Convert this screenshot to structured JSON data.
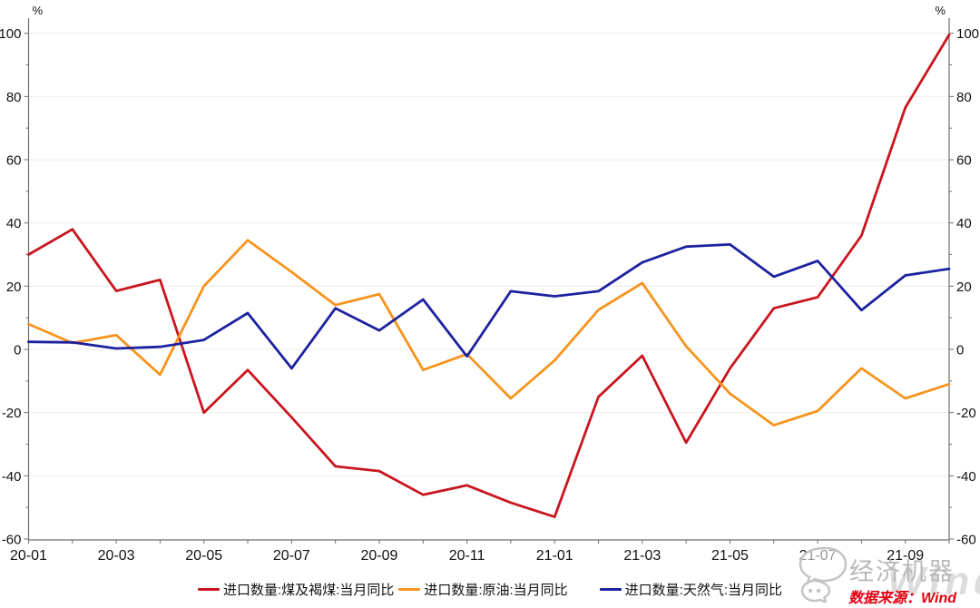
{
  "chart_data": {
    "type": "line",
    "title": "",
    "unit_label": "%",
    "x": [
      "20-01",
      "20-02",
      "20-03",
      "20-04",
      "20-05",
      "20-06",
      "20-07",
      "20-08",
      "20-09",
      "20-10",
      "20-11",
      "20-12",
      "21-01",
      "21-02",
      "21-03",
      "21-04",
      "21-05",
      "21-06",
      "21-07",
      "21-08",
      "21-09",
      "21-10"
    ],
    "x_labeled_every": 2,
    "ylim": [
      -60,
      100
    ],
    "ytick_step": 20,
    "ytick_minor_step": 10,
    "grid": "horizontal",
    "legend_position": "bottom",
    "axis_color": "#6f6f6f",
    "grid_color": "#ededed",
    "label_color": "#111111",
    "series": [
      {
        "name": "进口数量:煤及褐煤:当月同比",
        "color": "#c9151e",
        "values": [
          30,
          38,
          18.5,
          22,
          -20,
          -6.5,
          -21.5,
          -37,
          -38.5,
          -46,
          -43,
          -48.5,
          -53,
          -15,
          -2,
          -29.5,
          -6,
          13,
          16.5,
          36,
          76.5,
          99.5
        ]
      },
      {
        "name": "进口数量:原油:当月同比",
        "color": "#f7941d",
        "values": [
          8,
          2,
          4.5,
          -8,
          20,
          34.5,
          24.5,
          14,
          17.5,
          -6.5,
          -1.5,
          -15.5,
          -3.5,
          12.5,
          21,
          1,
          -14,
          -24,
          -19.5,
          -6,
          -15.5,
          -11
        ]
      },
      {
        "name": "进口数量:天然气:当月同比",
        "color": "#1c22a0",
        "values": [
          2.4,
          2.2,
          0.3,
          0.8,
          3,
          11.5,
          -6,
          13,
          6,
          15.8,
          -2.2,
          18.4,
          16.8,
          18.4,
          27.5,
          32.5,
          33.2,
          23,
          28,
          12.4,
          23.4,
          25.5
        ]
      }
    ]
  },
  "footer": {
    "source_label": "数据来源：Wind"
  },
  "watermark": {
    "brand": "经济机器",
    "big_text": "Wind"
  }
}
